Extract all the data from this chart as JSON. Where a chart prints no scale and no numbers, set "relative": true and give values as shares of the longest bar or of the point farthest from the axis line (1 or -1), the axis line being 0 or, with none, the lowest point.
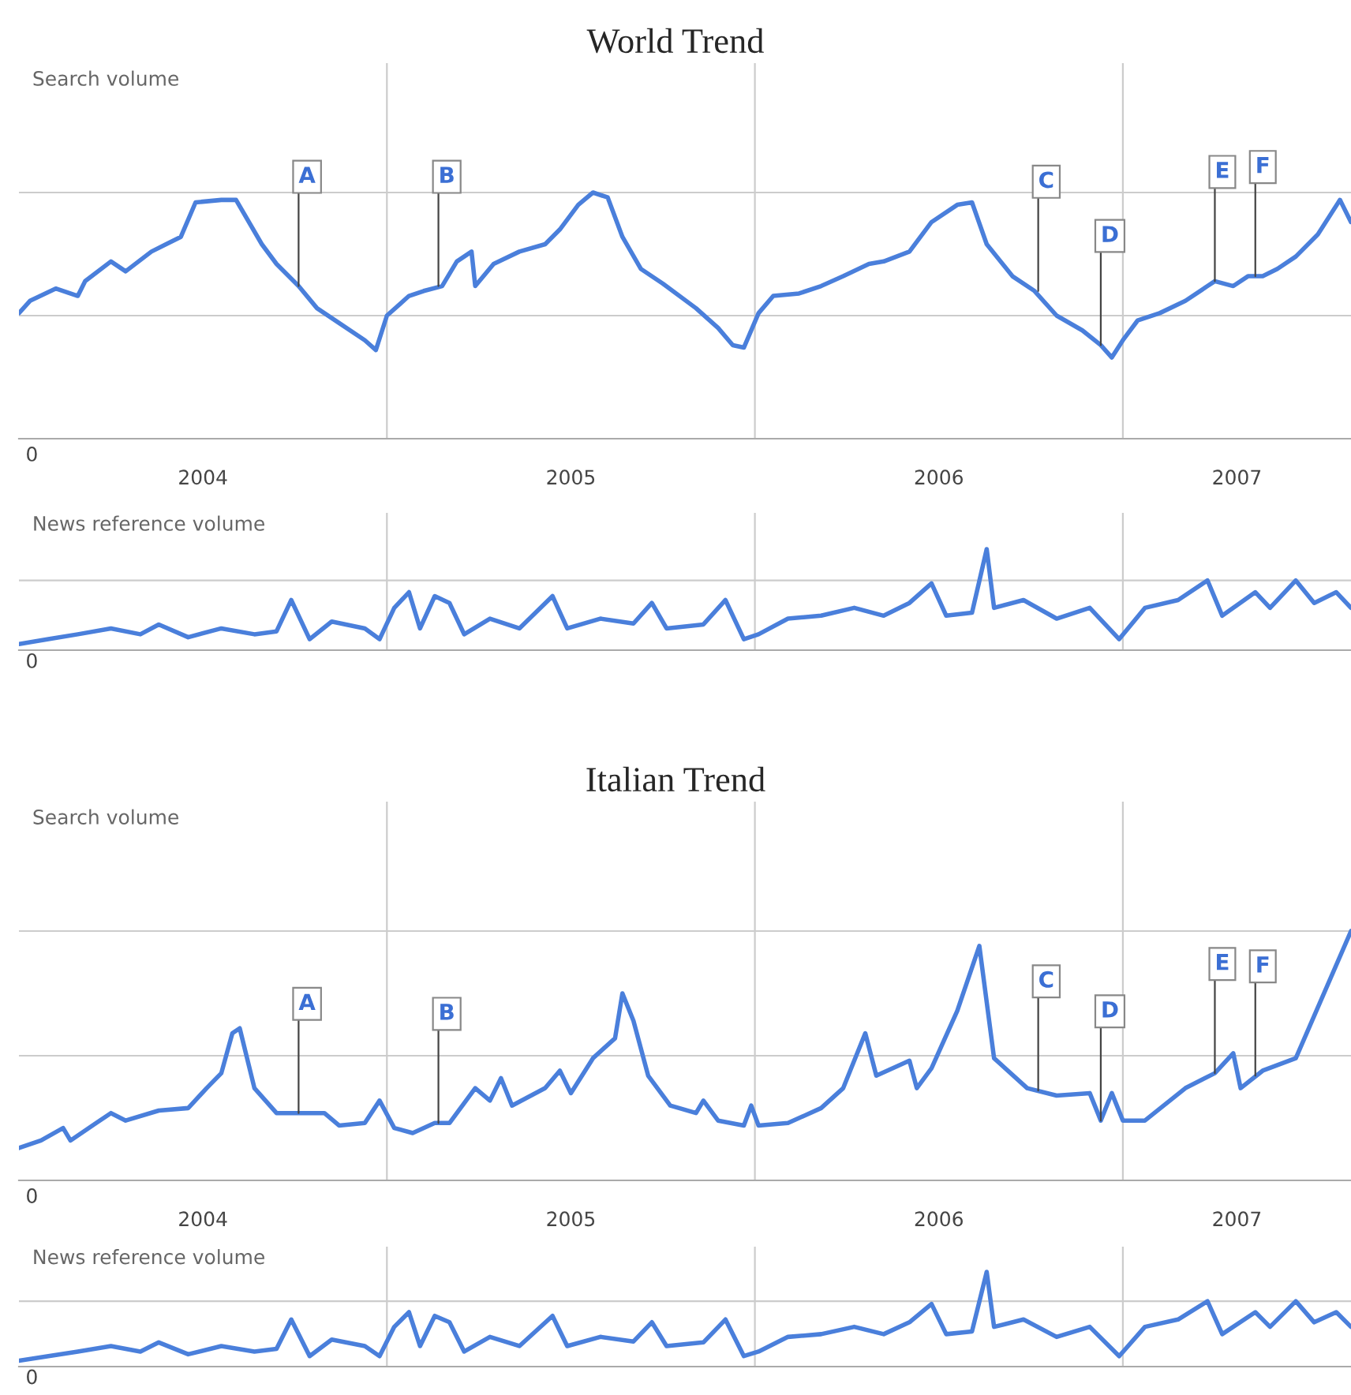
{
  "chart_data": [
    {
      "type": "line",
      "title": "World Trend",
      "ylabel": "Search volume",
      "relative": true,
      "xlim": [
        2004.0,
        2007.62
      ],
      "xticks": [
        {
          "value": 2004.5,
          "label": "2004"
        },
        {
          "value": 2005.5,
          "label": "2005"
        },
        {
          "value": 2006.5,
          "label": "2006"
        },
        {
          "value": 2007.31,
          "label": "2007"
        }
      ],
      "tick_labels": "x",
      "ref_lines": [
        {
          "axis": "x",
          "value": 2005,
          "color": "#cccccc"
        },
        {
          "axis": "x",
          "value": 2006,
          "color": "#cccccc"
        },
        {
          "axis": "x",
          "value": 2007,
          "color": "#cccccc"
        },
        {
          "axis": "y",
          "value": 0.5,
          "color": "#cccccc"
        },
        {
          "axis": "y",
          "value": 1.0,
          "color": "#cccccc"
        }
      ],
      "annotations": [
        "0",
        {
          "text": "A",
          "x": 2004.76,
          "y": 0.62
        },
        {
          "text": "B",
          "x": 2005.14,
          "y": 0.62
        },
        {
          "text": "C",
          "x": 2006.77,
          "y": 0.6
        },
        {
          "text": "D",
          "x": 2006.94,
          "y": 0.38
        },
        {
          "text": "E",
          "x": 2007.25,
          "y": 0.64
        },
        {
          "text": "F",
          "x": 2007.36,
          "y": 0.66
        }
      ],
      "series": [
        {
          "color": "#4a7fdb",
          "x": [
            2004.0,
            2004.03,
            2004.1,
            2004.16,
            2004.18,
            2004.25,
            2004.29,
            2004.36,
            2004.4,
            2004.44,
            2004.48,
            2004.55,
            2004.59,
            2004.66,
            2004.7,
            2004.76,
            2004.81,
            2004.87,
            2004.94,
            2004.97,
            2005.0,
            2005.06,
            2005.1,
            2005.15,
            2005.19,
            2005.23,
            2005.24,
            2005.29,
            2005.36,
            2005.43,
            2005.47,
            2005.52,
            2005.56,
            2005.6,
            2005.64,
            2005.69,
            2005.75,
            2005.84,
            2005.9,
            2005.94,
            2005.97,
            2006.01,
            2006.05,
            2006.12,
            2006.18,
            2006.24,
            2006.31,
            2006.35,
            2006.42,
            2006.48,
            2006.55,
            2006.59,
            2006.63,
            2006.7,
            2006.76,
            2006.82,
            2006.89,
            2006.94,
            2006.97,
            2007.0,
            2007.04,
            2007.1,
            2007.17,
            2007.23,
            2007.25,
            2007.3,
            2007.34,
            2007.38,
            2007.42,
            2007.47,
            2007.53,
            2007.59,
            2007.62
          ],
          "values": [
            0.51,
            0.56,
            0.61,
            0.58,
            0.64,
            0.72,
            0.68,
            0.76,
            0.79,
            0.82,
            0.96,
            0.97,
            0.97,
            0.79,
            0.71,
            0.62,
            0.53,
            0.47,
            0.4,
            0.36,
            0.5,
            0.58,
            0.6,
            0.62,
            0.72,
            0.76,
            0.62,
            0.71,
            0.76,
            0.79,
            0.85,
            0.95,
            1.0,
            0.98,
            0.82,
            0.69,
            0.63,
            0.53,
            0.45,
            0.38,
            0.37,
            0.51,
            0.58,
            0.59,
            0.62,
            0.66,
            0.71,
            0.72,
            0.76,
            0.88,
            0.95,
            0.96,
            0.79,
            0.66,
            0.6,
            0.5,
            0.44,
            0.38,
            0.33,
            0.4,
            0.48,
            0.51,
            0.56,
            0.62,
            0.64,
            0.62,
            0.66,
            0.66,
            0.69,
            0.74,
            0.83,
            0.97,
            0.88
          ]
        }
      ]
    },
    {
      "type": "line",
      "ylabel": "News reference volume",
      "relative": true,
      "xlim": [
        2004.0,
        2007.62
      ],
      "tick_labels": false,
      "ref_lines": [
        {
          "axis": "x",
          "value": 2005,
          "color": "#cccccc"
        },
        {
          "axis": "x",
          "value": 2006,
          "color": "#cccccc"
        },
        {
          "axis": "x",
          "value": 2007,
          "color": "#cccccc"
        },
        {
          "axis": "y",
          "value": 0.68,
          "color": "#cccccc"
        }
      ],
      "annotations": [
        "0"
      ],
      "series": [
        {
          "color": "#4a7fdb",
          "x": [
            2004.0,
            2004.08,
            2004.16,
            2004.25,
            2004.33,
            2004.38,
            2004.46,
            2004.55,
            2004.64,
            2004.7,
            2004.74,
            2004.79,
            2004.85,
            2004.94,
            2004.98,
            2005.02,
            2005.06,
            2005.09,
            2005.13,
            2005.17,
            2005.21,
            2005.28,
            2005.36,
            2005.45,
            2005.49,
            2005.58,
            2005.67,
            2005.72,
            2005.76,
            2005.86,
            2005.92,
            2005.97,
            2006.01,
            2006.09,
            2006.18,
            2006.27,
            2006.35,
            2006.42,
            2006.48,
            2006.52,
            2006.59,
            2006.63,
            2006.65,
            2006.73,
            2006.82,
            2006.91,
            2006.99,
            2007.06,
            2007.15,
            2007.23,
            2007.27,
            2007.36,
            2007.4,
            2007.47,
            2007.52,
            2007.58,
            2007.62
          ],
          "values": [
            0.03,
            0.08,
            0.13,
            0.19,
            0.13,
            0.23,
            0.1,
            0.19,
            0.13,
            0.16,
            0.48,
            0.08,
            0.26,
            0.19,
            0.08,
            0.4,
            0.56,
            0.19,
            0.52,
            0.45,
            0.13,
            0.29,
            0.19,
            0.52,
            0.19,
            0.29,
            0.24,
            0.45,
            0.19,
            0.23,
            0.48,
            0.08,
            0.13,
            0.29,
            0.32,
            0.4,
            0.32,
            0.45,
            0.65,
            0.32,
            0.35,
            1.0,
            0.4,
            0.48,
            0.29,
            0.4,
            0.08,
            0.4,
            0.48,
            0.68,
            0.32,
            0.56,
            0.4,
            0.68,
            0.45,
            0.56,
            0.4
          ]
        }
      ]
    },
    {
      "type": "line",
      "title": "Italian Trend",
      "ylabel": "Search volume",
      "relative": true,
      "xlim": [
        2004.0,
        2007.62
      ],
      "xticks": [
        {
          "value": 2004.5,
          "label": "2004"
        },
        {
          "value": 2005.5,
          "label": "2005"
        },
        {
          "value": 2006.5,
          "label": "2006"
        },
        {
          "value": 2007.31,
          "label": "2007"
        }
      ],
      "tick_labels": "x",
      "ref_lines": [
        {
          "axis": "x",
          "value": 2005,
          "color": "#cccccc"
        },
        {
          "axis": "x",
          "value": 2006,
          "color": "#cccccc"
        },
        {
          "axis": "x",
          "value": 2007,
          "color": "#cccccc"
        },
        {
          "axis": "y",
          "value": 0.5,
          "color": "#cccccc"
        },
        {
          "axis": "y",
          "value": 1.0,
          "color": "#cccccc"
        }
      ],
      "annotations": [
        "0",
        {
          "text": "A",
          "x": 2004.76,
          "y": 0.27
        },
        {
          "text": "B",
          "x": 2005.14,
          "y": 0.23
        },
        {
          "text": "C",
          "x": 2006.77,
          "y": 0.36
        },
        {
          "text": "D",
          "x": 2006.94,
          "y": 0.24
        },
        {
          "text": "E",
          "x": 2007.25,
          "y": 0.43
        },
        {
          "text": "F",
          "x": 2007.36,
          "y": 0.42
        }
      ],
      "series": [
        {
          "color": "#4a7fdb",
          "x": [
            2004.0,
            2004.06,
            2004.12,
            2004.14,
            2004.21,
            2004.25,
            2004.29,
            2004.38,
            2004.46,
            2004.51,
            2004.55,
            2004.58,
            2004.6,
            2004.64,
            2004.7,
            2004.76,
            2004.83,
            2004.87,
            2004.94,
            2004.98,
            2005.02,
            2005.07,
            2005.13,
            2005.17,
            2005.24,
            2005.28,
            2005.31,
            2005.34,
            2005.43,
            2005.47,
            2005.5,
            2005.56,
            2005.62,
            2005.64,
            2005.67,
            2005.71,
            2005.77,
            2005.84,
            2005.86,
            2005.9,
            2005.97,
            2005.99,
            2006.01,
            2006.09,
            2006.18,
            2006.24,
            2006.3,
            2006.33,
            2006.42,
            2006.44,
            2006.48,
            2006.55,
            2006.61,
            2006.65,
            2006.74,
            2006.82,
            2006.91,
            2006.94,
            2006.97,
            2007.0,
            2007.06,
            2007.17,
            2007.25,
            2007.3,
            2007.32,
            2007.38,
            2007.47,
            2007.62
          ],
          "values": [
            0.13,
            0.16,
            0.21,
            0.16,
            0.23,
            0.27,
            0.24,
            0.28,
            0.29,
            0.37,
            0.43,
            0.59,
            0.61,
            0.37,
            0.27,
            0.27,
            0.27,
            0.22,
            0.23,
            0.32,
            0.21,
            0.19,
            0.23,
            0.23,
            0.37,
            0.32,
            0.41,
            0.3,
            0.37,
            0.44,
            0.35,
            0.49,
            0.57,
            0.75,
            0.64,
            0.42,
            0.3,
            0.27,
            0.32,
            0.24,
            0.22,
            0.3,
            0.22,
            0.23,
            0.29,
            0.37,
            0.59,
            0.42,
            0.48,
            0.37,
            0.45,
            0.68,
            0.94,
            0.49,
            0.37,
            0.34,
            0.35,
            0.24,
            0.35,
            0.24,
            0.24,
            0.37,
            0.43,
            0.51,
            0.37,
            0.44,
            0.49,
            1.0
          ]
        }
      ]
    },
    {
      "type": "line",
      "ylabel": "News reference volume",
      "relative": true,
      "xlim": [
        2004.0,
        2007.62
      ],
      "tick_labels": false,
      "ref_lines": [
        {
          "axis": "x",
          "value": 2005,
          "color": "#cccccc"
        },
        {
          "axis": "x",
          "value": 2006,
          "color": "#cccccc"
        },
        {
          "axis": "x",
          "value": 2007,
          "color": "#cccccc"
        },
        {
          "axis": "y",
          "value": 0.68,
          "color": "#cccccc"
        }
      ],
      "annotations": [
        "0"
      ],
      "series": [
        {
          "color": "#4a7fdb",
          "x": [
            2004.0,
            2004.08,
            2004.16,
            2004.25,
            2004.33,
            2004.38,
            2004.46,
            2004.55,
            2004.64,
            2004.7,
            2004.74,
            2004.79,
            2004.85,
            2004.94,
            2004.98,
            2005.02,
            2005.06,
            2005.09,
            2005.13,
            2005.17,
            2005.21,
            2005.28,
            2005.36,
            2005.45,
            2005.49,
            2005.58,
            2005.67,
            2005.72,
            2005.76,
            2005.86,
            2005.92,
            2005.97,
            2006.01,
            2006.09,
            2006.18,
            2006.27,
            2006.35,
            2006.42,
            2006.48,
            2006.52,
            2006.59,
            2006.63,
            2006.65,
            2006.73,
            2006.82,
            2006.91,
            2006.99,
            2007.06,
            2007.15,
            2007.23,
            2007.27,
            2007.36,
            2007.4,
            2007.47,
            2007.52,
            2007.58,
            2007.62
          ],
          "values": [
            0.03,
            0.08,
            0.13,
            0.19,
            0.13,
            0.23,
            0.1,
            0.19,
            0.13,
            0.16,
            0.48,
            0.08,
            0.26,
            0.19,
            0.08,
            0.4,
            0.56,
            0.19,
            0.52,
            0.45,
            0.13,
            0.29,
            0.19,
            0.52,
            0.19,
            0.29,
            0.24,
            0.45,
            0.19,
            0.23,
            0.48,
            0.08,
            0.13,
            0.29,
            0.32,
            0.4,
            0.32,
            0.45,
            0.65,
            0.32,
            0.35,
            1.0,
            0.4,
            0.48,
            0.29,
            0.4,
            0.08,
            0.4,
            0.48,
            0.68,
            0.32,
            0.56,
            0.4,
            0.68,
            0.45,
            0.56,
            0.4
          ]
        }
      ]
    }
  ]
}
